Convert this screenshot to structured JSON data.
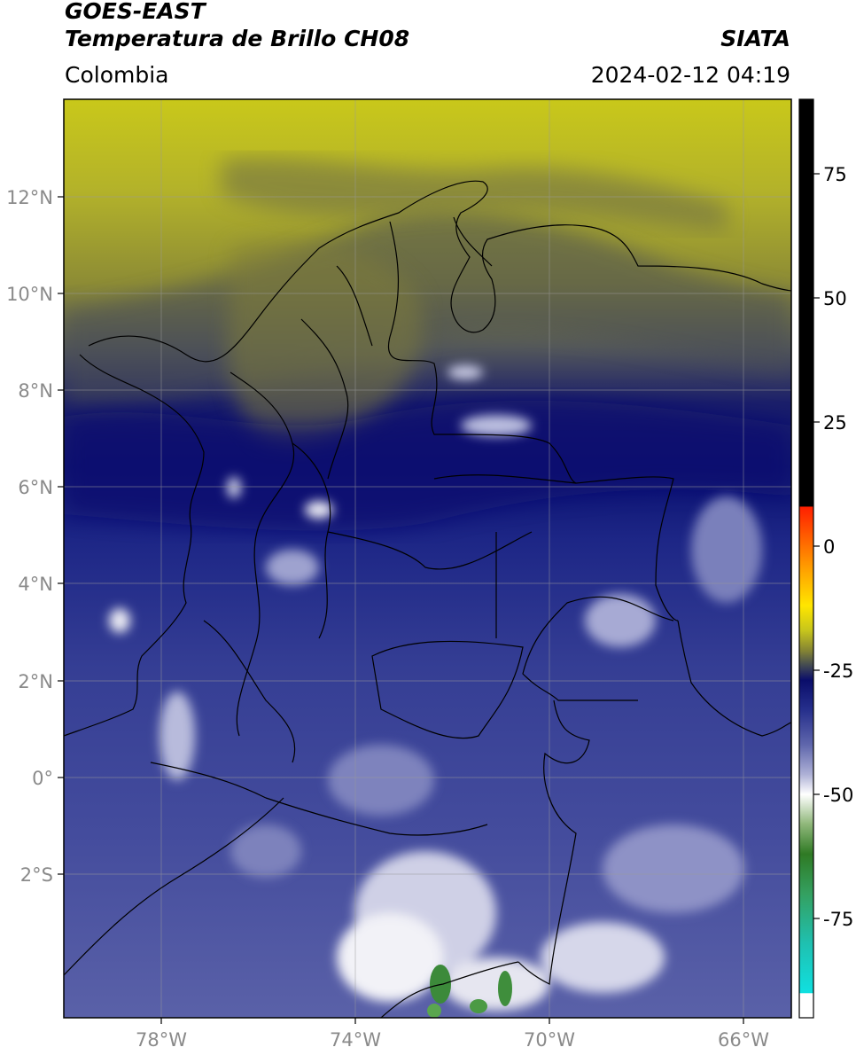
{
  "header": {
    "satellite": "GOES-EAST",
    "product": "Temperatura de Brillo CH08",
    "region": "Colombia",
    "agency": "SIATA",
    "datetime": "2024-02-12 04:19"
  },
  "map": {
    "lon_range": [
      -80,
      -65
    ],
    "lat_range": [
      -5,
      14
    ],
    "lon_ticks": [
      "78°W",
      "74°W",
      "70°W",
      "66°W"
    ],
    "lat_ticks": [
      "12°N",
      "10°N",
      "8°N",
      "6°N",
      "4°N",
      "2°N",
      "0°",
      "2°S"
    ],
    "grid": true,
    "colors": {
      "yellow_band": "#c9c81a",
      "olive": "#8a8a2a",
      "dark_gray": "#4a4d52",
      "navy": "#0a1170",
      "blue": "#3c4597",
      "lavender": "#8c90c4",
      "white": "#f2f2f7",
      "green": "#3c8a3a"
    }
  },
  "colorbar": {
    "ticks": [
      "75",
      "50",
      "25",
      "0",
      "-25",
      "-50",
      "-75"
    ],
    "tick_values": [
      75,
      50,
      25,
      0,
      -25,
      -50,
      -75
    ],
    "range": [
      -95,
      90
    ],
    "stops": [
      {
        "value": 90,
        "color": "#000000"
      },
      {
        "value": 8,
        "color": "#000000"
      },
      {
        "value": 7.9,
        "color": "#ff1f00"
      },
      {
        "value": -4,
        "color": "#ff9a00"
      },
      {
        "value": -12,
        "color": "#ffe600"
      },
      {
        "value": -17,
        "color": "#c7c51c"
      },
      {
        "value": -21,
        "color": "#858533"
      },
      {
        "value": -24,
        "color": "#434a52"
      },
      {
        "value": -27,
        "color": "#0a0d6a"
      },
      {
        "value": -33,
        "color": "#262f8c"
      },
      {
        "value": -40,
        "color": "#5f66ac"
      },
      {
        "value": -46,
        "color": "#aeb1d6"
      },
      {
        "value": -50,
        "color": "#ffffff"
      },
      {
        "value": -56,
        "color": "#8fb77a"
      },
      {
        "value": -62,
        "color": "#2f7a24"
      },
      {
        "value": -70,
        "color": "#34a060"
      },
      {
        "value": -80,
        "color": "#1fc0b0"
      },
      {
        "value": -90,
        "color": "#10e0e0"
      },
      {
        "value": -90.1,
        "color": "#ffffff"
      },
      {
        "value": -95,
        "color": "#ffffff"
      }
    ]
  }
}
